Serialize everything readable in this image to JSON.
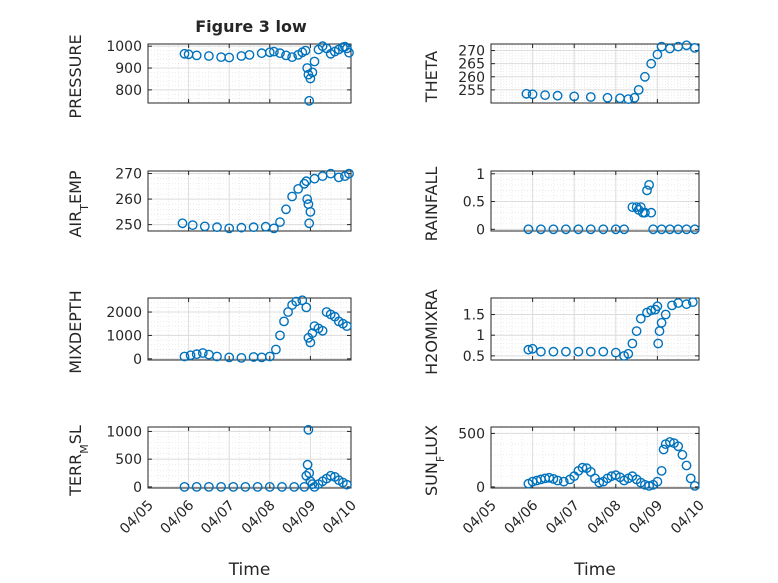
{
  "chart_data": {
    "title": "Figure 3 low",
    "series_color": "#0072bd",
    "panels": [
      {
        "type": "scatter",
        "name": "pressure-panel",
        "ylabel": "PRESSURE",
        "ylim": [
          740,
          1010
        ],
        "yticks": [
          {
            "v": 800,
            "t": "800"
          },
          {
            "v": 900,
            "t": "900"
          },
          {
            "v": 1000,
            "t": "1000"
          }
        ],
        "x": [
          5.9,
          6.0,
          6.2,
          6.5,
          6.8,
          7.0,
          7.3,
          7.5,
          7.8,
          8.0,
          8.1,
          8.25,
          8.4,
          8.55,
          8.7,
          8.8,
          8.88,
          8.92,
          8.95,
          8.97,
          9.0,
          9.05,
          9.1,
          9.2,
          9.3,
          9.4,
          9.5,
          9.6,
          9.7,
          9.8,
          9.85,
          9.9,
          9.95
        ],
        "y": [
          965,
          963,
          958,
          955,
          950,
          948,
          955,
          960,
          968,
          972,
          975,
          968,
          958,
          950,
          960,
          972,
          980,
          900,
          870,
          750,
          852,
          880,
          930,
          985,
          1000,
          990,
          965,
          975,
          985,
          995,
          998,
          990,
          970
        ]
      },
      {
        "type": "scatter",
        "name": "theta-panel",
        "ylabel": "THETA",
        "ylim": [
          250,
          272.5
        ],
        "yticks": [
          {
            "v": 255,
            "t": "255"
          },
          {
            "v": 260,
            "t": "260"
          },
          {
            "v": 265,
            "t": "265"
          },
          {
            "v": 270,
            "t": "270"
          }
        ],
        "x": [
          5.85,
          6.0,
          6.3,
          6.6,
          7.0,
          7.4,
          7.8,
          8.1,
          8.3,
          8.45,
          8.55,
          8.7,
          8.85,
          9.0,
          9.1,
          9.3,
          9.5,
          9.7,
          9.9
        ],
        "y": [
          253.5,
          253.3,
          253,
          252.8,
          252.5,
          252.3,
          252,
          251.8,
          251.5,
          252,
          255,
          260,
          265,
          268.5,
          271.5,
          270.8,
          271.5,
          272,
          271
        ]
      },
      {
        "type": "scatter",
        "name": "air-temp-panel",
        "ylabel": "AIR_TEMP",
        "ylim": [
          247.5,
          271
        ],
        "yticks": [
          {
            "v": 250,
            "t": "250"
          },
          {
            "v": 260,
            "t": "260"
          },
          {
            "v": 270,
            "t": "270"
          }
        ],
        "x": [
          5.85,
          6.1,
          6.4,
          6.7,
          7.0,
          7.3,
          7.6,
          7.9,
          8.1,
          8.25,
          8.4,
          8.55,
          8.7,
          8.85,
          8.9,
          8.92,
          8.95,
          8.97,
          9.0,
          9.1,
          9.3,
          9.5,
          9.7,
          9.85,
          9.95
        ],
        "y": [
          250.5,
          249.8,
          249.3,
          249,
          248.5,
          248.8,
          249,
          249.2,
          248.5,
          251,
          256,
          261,
          264,
          266,
          267,
          260,
          258,
          250.5,
          255,
          268,
          269,
          270,
          268.5,
          269,
          270
        ]
      },
      {
        "type": "scatter",
        "name": "rainfall-panel",
        "ylabel": "RAINFALL",
        "ylim": [
          -0.03,
          1.05
        ],
        "yticks": [
          {
            "v": 0,
            "t": "0"
          },
          {
            "v": 0.5,
            "t": "0.5"
          },
          {
            "v": 1,
            "t": "1"
          }
        ],
        "x": [
          5.9,
          6.2,
          6.5,
          6.8,
          7.1,
          7.4,
          7.7,
          8.0,
          8.2,
          8.4,
          8.5,
          8.55,
          8.6,
          8.65,
          8.7,
          8.75,
          8.8,
          8.85,
          8.9,
          9.1,
          9.3,
          9.5,
          9.7,
          9.9
        ],
        "y": [
          0,
          0,
          0,
          0,
          0,
          0,
          0,
          0,
          0,
          0.4,
          0.4,
          0.35,
          0.4,
          0.3,
          0.3,
          0.7,
          0.8,
          0.3,
          0,
          0,
          0,
          0,
          0,
          0
        ]
      },
      {
        "type": "scatter",
        "name": "mixdepth-panel",
        "ylabel": "MIXDEPTH",
        "ylim": [
          -50,
          2600
        ],
        "yticks": [
          {
            "v": 0,
            "t": "0"
          },
          {
            "v": 1000,
            "t": "1000"
          },
          {
            "v": 2000,
            "t": "2000"
          }
        ],
        "x": [
          5.9,
          6.05,
          6.2,
          6.35,
          6.5,
          6.7,
          7.0,
          7.3,
          7.6,
          7.8,
          8.0,
          8.15,
          8.25,
          8.35,
          8.45,
          8.55,
          8.65,
          8.8,
          8.9,
          8.95,
          9.0,
          9.05,
          9.1,
          9.2,
          9.3,
          9.4,
          9.5,
          9.6,
          9.7,
          9.8,
          9.9
        ],
        "y": [
          100,
          150,
          200,
          250,
          180,
          100,
          60,
          40,
          80,
          60,
          100,
          400,
          1000,
          1600,
          2000,
          2300,
          2450,
          2500,
          2200,
          900,
          700,
          1100,
          1400,
          1300,
          1200,
          2000,
          1900,
          1800,
          1600,
          1500,
          1400
        ]
      },
      {
        "type": "scatter",
        "name": "h2omixra-panel",
        "ylabel": "H2OMIXRA",
        "ylim": [
          0.4,
          1.9
        ],
        "yticks": [
          {
            "v": 0.5,
            "t": "0.5"
          },
          {
            "v": 1,
            "t": "1"
          },
          {
            "v": 1.5,
            "t": "1.5"
          }
        ],
        "x": [
          5.9,
          6.0,
          6.2,
          6.5,
          6.8,
          7.1,
          7.4,
          7.7,
          8.0,
          8.2,
          8.3,
          8.4,
          8.5,
          8.6,
          8.75,
          8.85,
          8.95,
          9.0,
          9.02,
          9.05,
          9.1,
          9.2,
          9.35,
          9.5,
          9.7,
          9.85
        ],
        "y": [
          0.65,
          0.67,
          0.6,
          0.6,
          0.6,
          0.6,
          0.6,
          0.6,
          0.58,
          0.5,
          0.55,
          0.8,
          1.1,
          1.4,
          1.55,
          1.6,
          1.62,
          1.7,
          0.8,
          1.1,
          1.3,
          1.5,
          1.72,
          1.78,
          1.75,
          1.8
        ]
      },
      {
        "type": "scatter",
        "name": "terr-msl-panel",
        "ylabel": "TERR_MSL",
        "ylim": [
          -20,
          1080
        ],
        "yticks": [
          {
            "v": 0,
            "t": "0"
          },
          {
            "v": 500,
            "t": "500"
          },
          {
            "v": 1000,
            "t": "1000"
          }
        ],
        "x": [
          5.9,
          6.2,
          6.5,
          6.8,
          7.1,
          7.4,
          7.7,
          8.0,
          8.3,
          8.6,
          8.85,
          8.9,
          8.93,
          8.95,
          8.97,
          9.0,
          9.05,
          9.1,
          9.2,
          9.3,
          9.4,
          9.5,
          9.6,
          9.7,
          9.8,
          9.9
        ],
        "y": [
          0,
          0,
          0,
          0,
          0,
          0,
          0,
          0,
          0,
          0,
          0,
          200,
          400,
          1030,
          250,
          100,
          50,
          0,
          50,
          100,
          150,
          200,
          180,
          120,
          80,
          40
        ]
      },
      {
        "type": "scatter",
        "name": "sun-flux-panel",
        "ylabel": "SUN_FLUX",
        "ylim": [
          -10,
          560
        ],
        "yticks": [
          {
            "v": 0,
            "t": "0"
          },
          {
            "v": 500,
            "t": "500"
          }
        ],
        "x": [
          5.9,
          6.0,
          6.1,
          6.2,
          6.3,
          6.4,
          6.5,
          6.6,
          6.75,
          6.9,
          7.0,
          7.1,
          7.2,
          7.3,
          7.4,
          7.5,
          7.6,
          7.7,
          7.8,
          7.9,
          8.0,
          8.1,
          8.2,
          8.3,
          8.4,
          8.5,
          8.6,
          8.7,
          8.8,
          8.9,
          9.0,
          9.1,
          9.15,
          9.2,
          9.3,
          9.4,
          9.5,
          9.6,
          9.7,
          9.8,
          9.9
        ],
        "y": [
          30,
          50,
          60,
          70,
          80,
          85,
          75,
          60,
          50,
          70,
          100,
          150,
          180,
          175,
          140,
          80,
          40,
          50,
          80,
          100,
          110,
          90,
          60,
          80,
          100,
          70,
          40,
          20,
          10,
          20,
          50,
          150,
          350,
          400,
          420,
          410,
          380,
          300,
          200,
          80,
          10
        ]
      }
    ],
    "x_axis": {
      "label": "Time",
      "range": [
        5,
        10
      ],
      "ticks": [
        {
          "v": 5,
          "t": "04/05"
        },
        {
          "v": 6,
          "t": "04/06"
        },
        {
          "v": 7,
          "t": "04/07"
        },
        {
          "v": 8,
          "t": "04/08"
        },
        {
          "v": 9,
          "t": "04/09"
        },
        {
          "v": 10,
          "t": "04/10"
        }
      ]
    },
    "grid": true
  }
}
